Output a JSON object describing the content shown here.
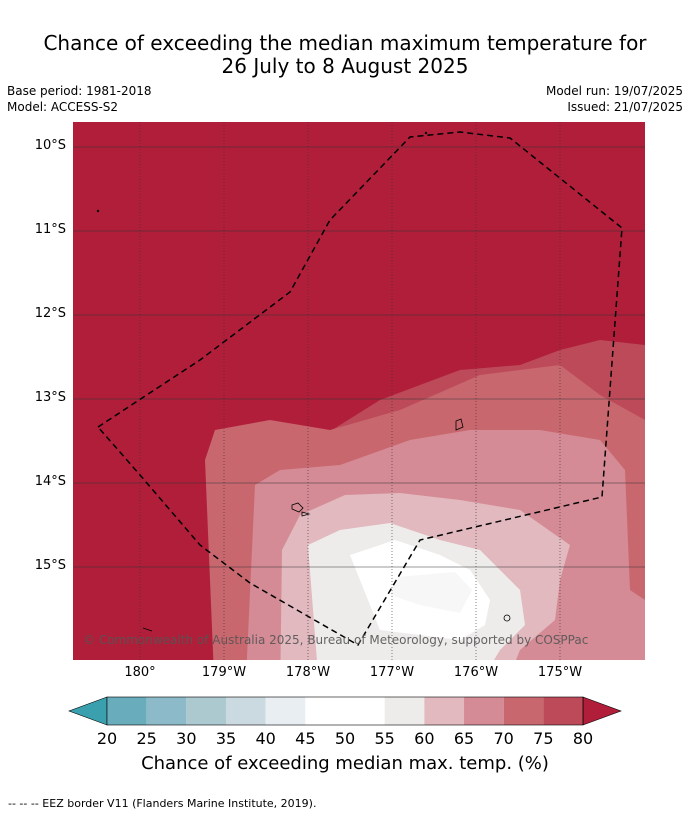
{
  "title": {
    "line1": "Chance of exceeding the median maximum temperature for",
    "line2": "26 July to 8 August 2025"
  },
  "meta": {
    "base_period": "Base period: 1981-2018",
    "model": "Model: ACCESS-S2",
    "model_run": "Model run: 19/07/2025",
    "issued": "Issued: 21/07/2025"
  },
  "map": {
    "latitude_labels": [
      "10°S",
      "11°S",
      "12°S",
      "13°S",
      "14°S",
      "15°S"
    ],
    "longitude_labels": [
      "180°",
      "179°W",
      "178°W",
      "177°W",
      "176°W",
      "175°W"
    ],
    "copyright": "© Commonwealth of Australia 2025, Bureau of Meteorology, supported by COSPPac"
  },
  "colorbar": {
    "ticks": [
      "20",
      "25",
      "30",
      "35",
      "40",
      "45",
      "50",
      "55",
      "60",
      "65",
      "70",
      "75",
      "80"
    ],
    "title": "Chance of exceeding median max. temp. (%)",
    "colors": [
      "#3aa0ad",
      "#69adbc",
      "#8cbac8",
      "#acc9d0",
      "#cbd9e0",
      "#e8eef2",
      "#ffffff",
      "#ffffff",
      "#eeeceb",
      "#e1b9bf",
      "#d48b95",
      "#c9676f",
      "#bd4a59",
      "#b01e3a"
    ]
  },
  "footer": "--  --  -- EEZ border V11 (Flanders Marine Institute, 2019)."
}
